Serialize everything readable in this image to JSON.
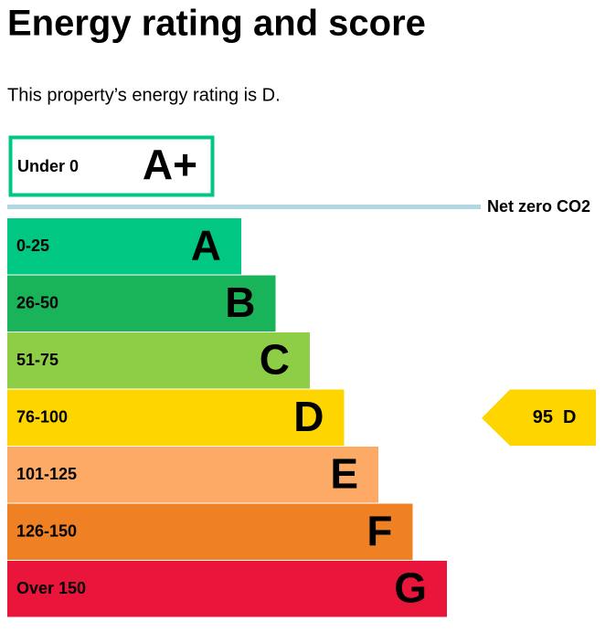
{
  "header": {
    "title": "Energy rating and score",
    "description": "This property’s energy rating is D."
  },
  "top_band": {
    "range": "Under 0",
    "letter": "A+",
    "color": "#00c781"
  },
  "net_zero": {
    "label": "Net zero CO2",
    "color": "#b1d7e3"
  },
  "bands": [
    {
      "range": "0-25",
      "letter": "A",
      "color": "#00c781"
    },
    {
      "range": "26-50",
      "letter": "B",
      "color": "#19b459"
    },
    {
      "range": "51-75",
      "letter": "C",
      "color": "#8dce46"
    },
    {
      "range": "76-100",
      "letter": "D",
      "color": "#ffd500"
    },
    {
      "range": "101-125",
      "letter": "E",
      "color": "#fcaa65"
    },
    {
      "range": "126-150",
      "letter": "F",
      "color": "#ef8023"
    },
    {
      "range": "Over 150",
      "letter": "G",
      "color": "#e9153b"
    }
  ],
  "current": {
    "score": "95",
    "letter": "D",
    "band_index": 3
  }
}
